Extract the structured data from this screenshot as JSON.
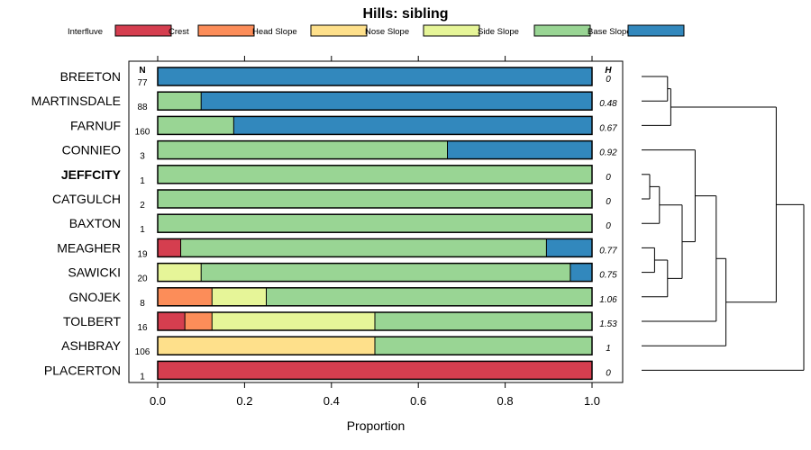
{
  "chart_data": {
    "type": "bar",
    "orientation": "horizontal",
    "stacked": true,
    "title": "Hills: sibling",
    "xlabel": "Proportion",
    "ylabel": "",
    "xlim": [
      0,
      1
    ],
    "xticks": [
      "0.0",
      "0.2",
      "0.4",
      "0.6",
      "0.8",
      "1.0"
    ],
    "n_header": "N",
    "h_header": "H",
    "legend_position": "top",
    "legend": [
      {
        "name": "Interfluve",
        "color": "#d53e4f"
      },
      {
        "name": "Crest",
        "color": "#fc8d59"
      },
      {
        "name": "Head Slope",
        "color": "#fee08b"
      },
      {
        "name": "Nose Slope",
        "color": "#e6f598"
      },
      {
        "name": "Side Slope",
        "color": "#99d594"
      },
      {
        "name": "Base Slope",
        "color": "#3288bd"
      }
    ],
    "categories": [
      {
        "name": "BREETON",
        "n": "77",
        "h": "0",
        "bold": false,
        "values": [
          0,
          0,
          0,
          0,
          0,
          1.0
        ]
      },
      {
        "name": "MARTINSDALE",
        "n": "88",
        "h": "0.48",
        "bold": false,
        "values": [
          0,
          0,
          0,
          0,
          0.1,
          0.9
        ]
      },
      {
        "name": "FARNUF",
        "n": "160",
        "h": "0.67",
        "bold": false,
        "values": [
          0,
          0,
          0,
          0,
          0.175,
          0.825
        ]
      },
      {
        "name": "CONNIEO",
        "n": "3",
        "h": "0.92",
        "bold": false,
        "values": [
          0,
          0,
          0,
          0,
          0.667,
          0.333
        ]
      },
      {
        "name": "JEFFCITY",
        "n": "1",
        "h": "0",
        "bold": true,
        "values": [
          0,
          0,
          0,
          0,
          1.0,
          0
        ]
      },
      {
        "name": "CATGULCH",
        "n": "2",
        "h": "0",
        "bold": false,
        "values": [
          0,
          0,
          0,
          0,
          1.0,
          0
        ]
      },
      {
        "name": "BAXTON",
        "n": "1",
        "h": "0",
        "bold": false,
        "values": [
          0,
          0,
          0,
          0,
          1.0,
          0
        ]
      },
      {
        "name": "MEAGHER",
        "n": "19",
        "h": "0.77",
        "bold": false,
        "values": [
          0.053,
          0,
          0,
          0,
          0.842,
          0.105
        ]
      },
      {
        "name": "SAWICKI",
        "n": "20",
        "h": "0.75",
        "bold": false,
        "values": [
          0,
          0,
          0,
          0.1,
          0.85,
          0.05
        ]
      },
      {
        "name": "GNOJEK",
        "n": "8",
        "h": "1.06",
        "bold": false,
        "values": [
          0,
          0.125,
          0,
          0.125,
          0.75,
          0
        ]
      },
      {
        "name": "TOLBERT",
        "n": "16",
        "h": "1.53",
        "bold": false,
        "values": [
          0.0625,
          0.0625,
          0,
          0.375,
          0.5,
          0
        ]
      },
      {
        "name": "ASHBRAY",
        "n": "106",
        "h": "1",
        "bold": false,
        "values": [
          0,
          0,
          0.5,
          0,
          0.5,
          0
        ]
      },
      {
        "name": "PLACERTON",
        "n": "1",
        "h": "0",
        "bold": false,
        "values": [
          1.0,
          0,
          0,
          0,
          0,
          0
        ]
      }
    ],
    "dendrogram": {
      "leaf_order": [
        "BREETON",
        "MARTINSDALE",
        "FARNUF",
        "CONNIEO",
        "JEFFCITY",
        "CATGULCH",
        "BAXTON",
        "MEAGHER",
        "SAWICKI",
        "GNOJEK",
        "TOLBERT",
        "ASHBRAY",
        "PLACERTON"
      ],
      "merges": [
        {
          "a": 0,
          "b": 1,
          "height": 0.16
        },
        {
          "a": "n0",
          "b": 2,
          "height": 0.18
        },
        {
          "a": 4,
          "b": 5,
          "height": 0.05
        },
        {
          "a": "n2",
          "b": 6,
          "height": 0.11
        },
        {
          "a": 7,
          "b": 8,
          "height": 0.08
        },
        {
          "a": "n4",
          "b": 9,
          "height": 0.16
        },
        {
          "a": "n3",
          "b": "n5",
          "height": 0.25
        },
        {
          "a": 3,
          "b": "n6",
          "height": 0.33
        },
        {
          "a": "n7",
          "b": 10,
          "height": 0.46
        },
        {
          "a": "n8",
          "b": 11,
          "height": 0.52
        },
        {
          "a": "n1",
          "b": "n9",
          "height": 0.83
        },
        {
          "a": "n10",
          "b": 12,
          "height": 1.0
        }
      ]
    }
  }
}
